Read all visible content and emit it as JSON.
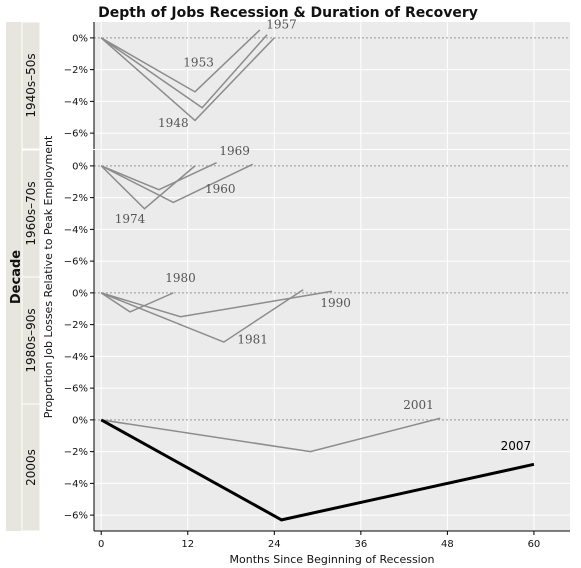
{
  "chart_data": {
    "type": "line",
    "title": "Depth of Jobs Recession & Duration of Recovery",
    "xlabel": "Months Since Beginning of Recession",
    "ylabel": "Proportion Job Losses Relative to Peak Employment",
    "facet_axis_label": "Decade",
    "xlim": [
      -1,
      65
    ],
    "ylim": [
      -7,
      1
    ],
    "x_ticks": [
      0,
      12,
      24,
      36,
      48,
      60
    ],
    "x_tick_labels": [
      "0",
      "12",
      "24",
      "36",
      "48",
      "60"
    ],
    "y_ticks": [
      0,
      -2,
      -4,
      -6
    ],
    "y_tick_labels": [
      "0%",
      "−2%",
      "−4%",
      "−6%"
    ],
    "grid": true,
    "colors": {
      "panel_bg": "#ebebeb",
      "strip_bg": "#e6e6de",
      "series": "#8c8c8c",
      "series_light": "#a8a8a8",
      "highlight": "#000000",
      "zero_line": "#9a9a9a"
    },
    "panels": [
      {
        "label": "1940s–50s",
        "series": [
          {
            "name": "1948",
            "x": [
              0,
              13,
              24
            ],
            "y": [
              0,
              -5.2,
              0
            ]
          },
          {
            "name": "1953",
            "x": [
              0,
              13,
              22
            ],
            "y": [
              0,
              -3.4,
              0.5
            ]
          },
          {
            "name": "1957",
            "x": [
              0,
              14,
              23
            ],
            "y": [
              0,
              -4.4,
              0.2
            ]
          }
        ]
      },
      {
        "label": "1960s–70s",
        "series": [
          {
            "name": "1960",
            "x": [
              0,
              10,
              21
            ],
            "y": [
              0,
              -2.3,
              0.1
            ]
          },
          {
            "name": "1969",
            "x": [
              0,
              8,
              16
            ],
            "y": [
              0,
              -1.5,
              0.2
            ]
          },
          {
            "name": "1974",
            "x": [
              0,
              6,
              13
            ],
            "y": [
              0,
              -2.7,
              0
            ]
          }
        ]
      },
      {
        "label": "1980s–90s",
        "series": [
          {
            "name": "1980",
            "x": [
              0,
              4,
              10
            ],
            "y": [
              0,
              -1.2,
              0
            ]
          },
          {
            "name": "1981",
            "x": [
              0,
              17,
              28
            ],
            "y": [
              0,
              -3.1,
              0.2
            ]
          },
          {
            "name": "1990",
            "x": [
              0,
              11,
              32
            ],
            "y": [
              0,
              -1.5,
              0.1
            ]
          }
        ]
      },
      {
        "label": "2000s",
        "series": [
          {
            "name": "2001",
            "x": [
              0,
              29,
              47
            ],
            "y": [
              0,
              -2,
              0.1
            ]
          },
          {
            "name": "2007",
            "x": [
              0,
              25,
              60
            ],
            "y": [
              0,
              -6.3,
              -2.8
            ],
            "highlight": true
          }
        ]
      }
    ],
    "annotations": [
      {
        "panel": 0,
        "text": "1953",
        "x": 13.5,
        "y": -1.8
      },
      {
        "panel": 0,
        "text": "1957",
        "x": 25,
        "y": 0.6
      },
      {
        "panel": 0,
        "text": "1948",
        "x": 10,
        "y": -5.6
      },
      {
        "panel": 1,
        "text": "1969",
        "x": 18.5,
        "y": 0.7
      },
      {
        "panel": 1,
        "text": "1960",
        "x": 16.5,
        "y": -1.7
      },
      {
        "panel": 1,
        "text": "1974",
        "x": 4,
        "y": -3.6
      },
      {
        "panel": 2,
        "text": "1980",
        "x": 11,
        "y": 0.7
      },
      {
        "panel": 2,
        "text": "1990",
        "x": 32.5,
        "y": -0.9
      },
      {
        "panel": 2,
        "text": "1981",
        "x": 21,
        "y": -3.2
      },
      {
        "panel": 3,
        "text": "2001",
        "x": 44,
        "y": 0.7
      },
      {
        "panel": 3,
        "text": "2007",
        "x": 57.5,
        "y": -1.9,
        "highlight": true
      }
    ]
  }
}
